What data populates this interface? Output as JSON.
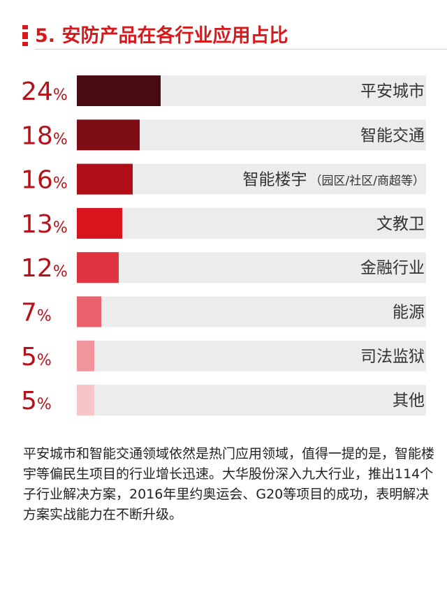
{
  "header": {
    "title": "5. 安防产品在各行业应用占比"
  },
  "chart_data": {
    "type": "bar",
    "orientation": "horizontal",
    "title": "",
    "categories": [
      {
        "label": "平安城市",
        "sub": ""
      },
      {
        "label": "智能交通",
        "sub": ""
      },
      {
        "label": "智能楼宇",
        "sub": "（园区/社区/商超等）"
      },
      {
        "label": "文教卫",
        "sub": ""
      },
      {
        "label": "金融行业",
        "sub": ""
      },
      {
        "label": "能源",
        "sub": ""
      },
      {
        "label": "司法监狱",
        "sub": ""
      },
      {
        "label": "其他",
        "sub": ""
      }
    ],
    "values": [
      24,
      18,
      16,
      13,
      12,
      7,
      5,
      5
    ],
    "value_labels": [
      "24",
      "18",
      "16",
      "13",
      "12",
      "7",
      "5",
      "5"
    ],
    "unit": "%",
    "xlim": [
      0,
      100
    ],
    "colors": [
      "#4a0a12",
      "#7d0c14",
      "#b00d16",
      "#d8141d",
      "#e03440",
      "#e8616b",
      "#f0959b",
      "#f7c4c8"
    ],
    "track_color": "#ececec",
    "label_color": "#b5121b",
    "grid": false,
    "legend": "none"
  },
  "description": "平安城市和智能交通领域依然是热门应用领域，值得一提的是，智能楼宇等偏民生项目的行业增长迅速。大华股份深入九大行业，推出114个子行业解决方案，2016年里约奥运会、G20等项目的成功，表明解决方案实战能力在不断升级。"
}
